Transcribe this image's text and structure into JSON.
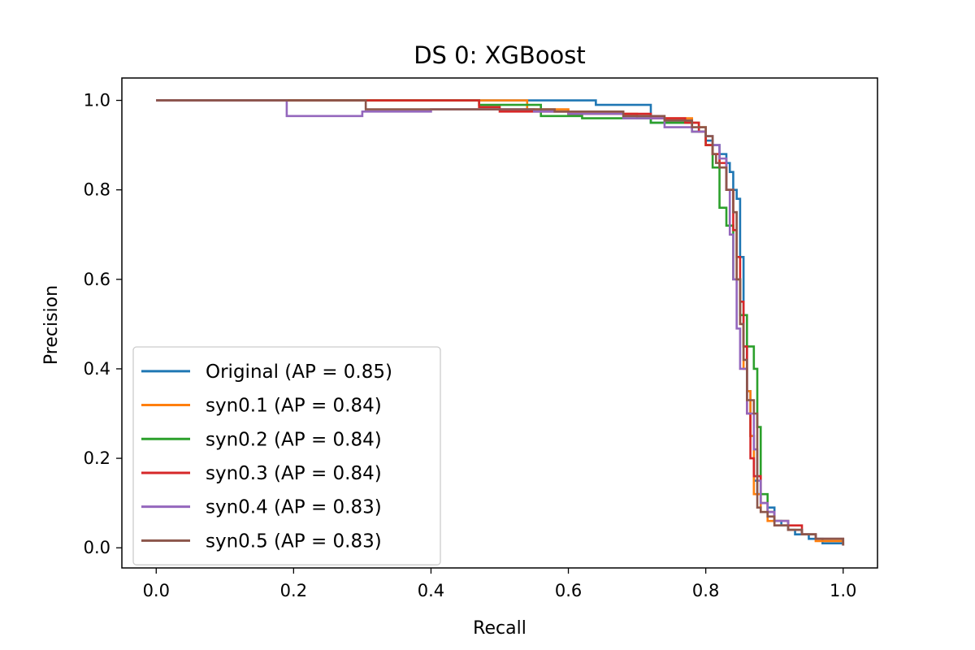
{
  "chart_data": {
    "type": "line",
    "title": "DS 0: XGBoost",
    "xlabel": "Recall",
    "ylabel": "Precision",
    "xlim": [
      -0.05,
      1.05
    ],
    "ylim": [
      -0.045,
      1.05
    ],
    "xticks": [
      0.0,
      0.2,
      0.4,
      0.6,
      0.8,
      1.0
    ],
    "xtick_labels": [
      "0.0",
      "0.2",
      "0.4",
      "0.6",
      "0.8",
      "1.0"
    ],
    "yticks": [
      0.0,
      0.2,
      0.4,
      0.6,
      0.8,
      1.0
    ],
    "ytick_labels": [
      "0.0",
      "0.2",
      "0.4",
      "0.6",
      "0.8",
      "1.0"
    ],
    "grid": false,
    "legend_position": "lower-left",
    "series": [
      {
        "name": "Original (AP = 0.85)",
        "color": "#1f77b4",
        "x": [
          0.0,
          0.64,
          0.64,
          0.72,
          0.72,
          0.78,
          0.79,
          0.8,
          0.81,
          0.82,
          0.83,
          0.835,
          0.84,
          0.845,
          0.85,
          0.855,
          0.86,
          0.865,
          0.87,
          0.875,
          0.88,
          0.89,
          0.9,
          0.91,
          0.92,
          0.93,
          0.95,
          0.97,
          1.0
        ],
        "y": [
          1.0,
          1.0,
          0.99,
          0.99,
          0.95,
          0.95,
          0.93,
          0.91,
          0.9,
          0.88,
          0.86,
          0.84,
          0.8,
          0.78,
          0.65,
          0.45,
          0.35,
          0.25,
          0.15,
          0.12,
          0.1,
          0.09,
          0.06,
          0.05,
          0.04,
          0.03,
          0.02,
          0.01,
          0.005
        ]
      },
      {
        "name": "syn0.1 (AP = 0.84)",
        "color": "#ff7f0e",
        "x": [
          0.0,
          0.54,
          0.54,
          0.6,
          0.7,
          0.78,
          0.79,
          0.8,
          0.81,
          0.82,
          0.83,
          0.84,
          0.845,
          0.85,
          0.855,
          0.86,
          0.865,
          0.87,
          0.88,
          0.89,
          0.9,
          0.92,
          0.94,
          0.96,
          1.0
        ],
        "y": [
          1.0,
          1.0,
          0.98,
          0.97,
          0.96,
          0.95,
          0.94,
          0.9,
          0.88,
          0.85,
          0.8,
          0.75,
          0.6,
          0.5,
          0.4,
          0.35,
          0.25,
          0.12,
          0.08,
          0.06,
          0.05,
          0.04,
          0.03,
          0.015,
          0.005
        ]
      },
      {
        "name": "syn0.2 (AP = 0.84)",
        "color": "#2ca02c",
        "x": [
          0.0,
          0.47,
          0.47,
          0.56,
          0.56,
          0.62,
          0.72,
          0.78,
          0.8,
          0.81,
          0.82,
          0.83,
          0.84,
          0.85,
          0.86,
          0.87,
          0.875,
          0.88,
          0.89,
          0.9,
          0.92,
          0.94,
          0.96,
          1.0
        ],
        "y": [
          1.0,
          1.0,
          0.99,
          0.99,
          0.965,
          0.96,
          0.95,
          0.93,
          0.9,
          0.85,
          0.76,
          0.72,
          0.6,
          0.52,
          0.45,
          0.4,
          0.27,
          0.12,
          0.08,
          0.06,
          0.04,
          0.03,
          0.02,
          0.005
        ]
      },
      {
        "name": "syn0.3 (AP = 0.84)",
        "color": "#d62728",
        "x": [
          0.0,
          0.47,
          0.47,
          0.5,
          0.5,
          0.6,
          0.72,
          0.77,
          0.79,
          0.8,
          0.81,
          0.82,
          0.83,
          0.84,
          0.845,
          0.85,
          0.855,
          0.86,
          0.865,
          0.87,
          0.88,
          0.89,
          0.9,
          0.92,
          0.94,
          0.96,
          1.0
        ],
        "y": [
          1.0,
          1.0,
          0.985,
          0.985,
          0.975,
          0.97,
          0.96,
          0.95,
          0.93,
          0.9,
          0.88,
          0.86,
          0.8,
          0.71,
          0.65,
          0.55,
          0.45,
          0.3,
          0.2,
          0.16,
          0.1,
          0.08,
          0.06,
          0.05,
          0.03,
          0.02,
          0.005
        ]
      },
      {
        "name": "syn0.4 (AP = 0.83)",
        "color": "#9467bd",
        "x": [
          0.0,
          0.19,
          0.19,
          0.3,
          0.4,
          0.55,
          0.6,
          0.68,
          0.74,
          0.78,
          0.8,
          0.81,
          0.82,
          0.83,
          0.835,
          0.84,
          0.845,
          0.85,
          0.86,
          0.87,
          0.875,
          0.88,
          0.89,
          0.9,
          0.92,
          0.94,
          0.96,
          1.0
        ],
        "y": [
          1.0,
          1.0,
          0.965,
          0.975,
          0.98,
          0.975,
          0.97,
          0.96,
          0.94,
          0.93,
          0.92,
          0.9,
          0.87,
          0.8,
          0.7,
          0.6,
          0.49,
          0.4,
          0.3,
          0.22,
          0.15,
          0.1,
          0.08,
          0.06,
          0.04,
          0.03,
          0.02,
          0.005
        ]
      },
      {
        "name": "syn0.5 (AP = 0.83)",
        "color": "#8c564b",
        "x": [
          0.0,
          0.305,
          0.305,
          0.45,
          0.58,
          0.68,
          0.74,
          0.78,
          0.8,
          0.81,
          0.815,
          0.82,
          0.83,
          0.84,
          0.845,
          0.85,
          0.855,
          0.86,
          0.87,
          0.875,
          0.88,
          0.89,
          0.9,
          0.92,
          0.94,
          0.96,
          1.0
        ],
        "y": [
          1.0,
          1.0,
          0.98,
          0.98,
          0.975,
          0.965,
          0.955,
          0.94,
          0.92,
          0.88,
          0.86,
          0.85,
          0.8,
          0.75,
          0.6,
          0.5,
          0.42,
          0.33,
          0.3,
          0.09,
          0.08,
          0.07,
          0.05,
          0.04,
          0.03,
          0.02,
          0.005
        ]
      }
    ]
  }
}
